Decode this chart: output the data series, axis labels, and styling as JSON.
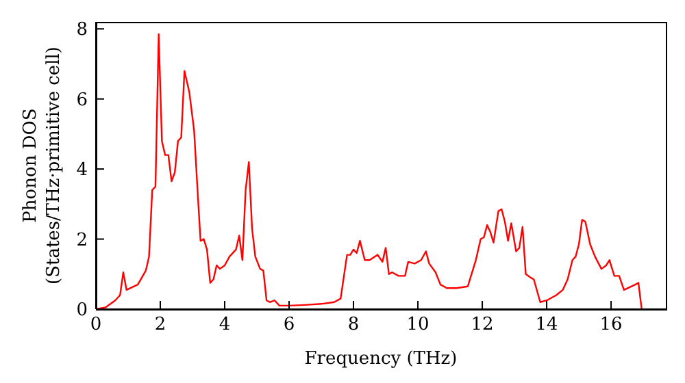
{
  "chart_data": {
    "type": "line",
    "xlabel": "Frequency (THz)",
    "ylabel": "Phonon DOS\n(States/THz·primitive cell)",
    "xlim": [
      0,
      17.7
    ],
    "xticks": [
      0,
      2,
      4,
      6,
      8,
      10,
      12,
      14,
      16
    ],
    "ylim": [
      0,
      8.2
    ],
    "yticks": [
      0,
      2,
      4,
      6,
      8
    ],
    "grid": false,
    "legend": false,
    "marker": "none",
    "line_style": "solid",
    "x": [
      0,
      0.3,
      0.6,
      0.75,
      0.85,
      0.95,
      1.3,
      1.55,
      1.65,
      1.75,
      1.85,
      1.95,
      2.05,
      2.15,
      2.25,
      2.35,
      2.45,
      2.55,
      2.65,
      2.75,
      2.9,
      3.05,
      3.15,
      3.25,
      3.35,
      3.45,
      3.55,
      3.65,
      3.75,
      3.85,
      4.0,
      4.15,
      4.35,
      4.45,
      4.55,
      4.65,
      4.75,
      4.85,
      4.95,
      5.1,
      5.2,
      5.3,
      5.4,
      5.55,
      5.7,
      6.0,
      6.5,
      7.0,
      7.4,
      7.6,
      7.8,
      7.9,
      8.0,
      8.1,
      8.2,
      8.35,
      8.5,
      8.75,
      8.9,
      9.0,
      9.1,
      9.2,
      9.4,
      9.6,
      9.7,
      9.9,
      10.1,
      10.25,
      10.35,
      10.55,
      10.7,
      10.9,
      11.2,
      11.55,
      11.65,
      11.8,
      11.95,
      12.05,
      12.15,
      12.25,
      12.35,
      12.5,
      12.6,
      12.7,
      12.8,
      12.9,
      13.05,
      13.15,
      13.25,
      13.35,
      13.5,
      13.6,
      13.8,
      14.0,
      14.3,
      14.5,
      14.65,
      14.8,
      14.9,
      15.0,
      15.1,
      15.2,
      15.35,
      15.5,
      15.7,
      15.85,
      15.95,
      16.1,
      16.25,
      16.4,
      16.75,
      16.85,
      16.95
    ],
    "series": [
      {
        "color": "#ff0000",
        "values": [
          0,
          0.05,
          0.25,
          0.4,
          1.05,
          0.55,
          0.7,
          1.1,
          1.5,
          3.4,
          3.5,
          7.85,
          4.8,
          4.4,
          4.4,
          3.65,
          3.9,
          4.8,
          4.9,
          6.8,
          6.2,
          5.1,
          3.5,
          1.95,
          2.0,
          1.7,
          0.75,
          0.85,
          1.25,
          1.15,
          1.25,
          1.5,
          1.7,
          2.1,
          1.4,
          3.4,
          4.2,
          2.3,
          1.5,
          1.15,
          1.1,
          0.25,
          0.2,
          0.25,
          0.1,
          0.1,
          0.12,
          0.15,
          0.2,
          0.3,
          1.55,
          1.55,
          1.7,
          1.6,
          1.95,
          1.4,
          1.4,
          1.55,
          1.35,
          1.75,
          1.0,
          1.05,
          0.95,
          0.95,
          1.35,
          1.3,
          1.4,
          1.65,
          1.3,
          1.05,
          0.7,
          0.6,
          0.6,
          0.65,
          0.95,
          1.4,
          2.0,
          2.05,
          2.4,
          2.2,
          1.9,
          2.8,
          2.85,
          2.5,
          1.95,
          2.45,
          1.65,
          1.75,
          2.35,
          1.0,
          0.9,
          0.85,
          0.2,
          0.25,
          0.4,
          0.55,
          0.85,
          1.4,
          1.5,
          1.85,
          2.55,
          2.5,
          1.85,
          1.5,
          1.15,
          1.25,
          1.4,
          0.95,
          0.95,
          0.55,
          0.7,
          0.75,
          0
        ]
      }
    ]
  }
}
